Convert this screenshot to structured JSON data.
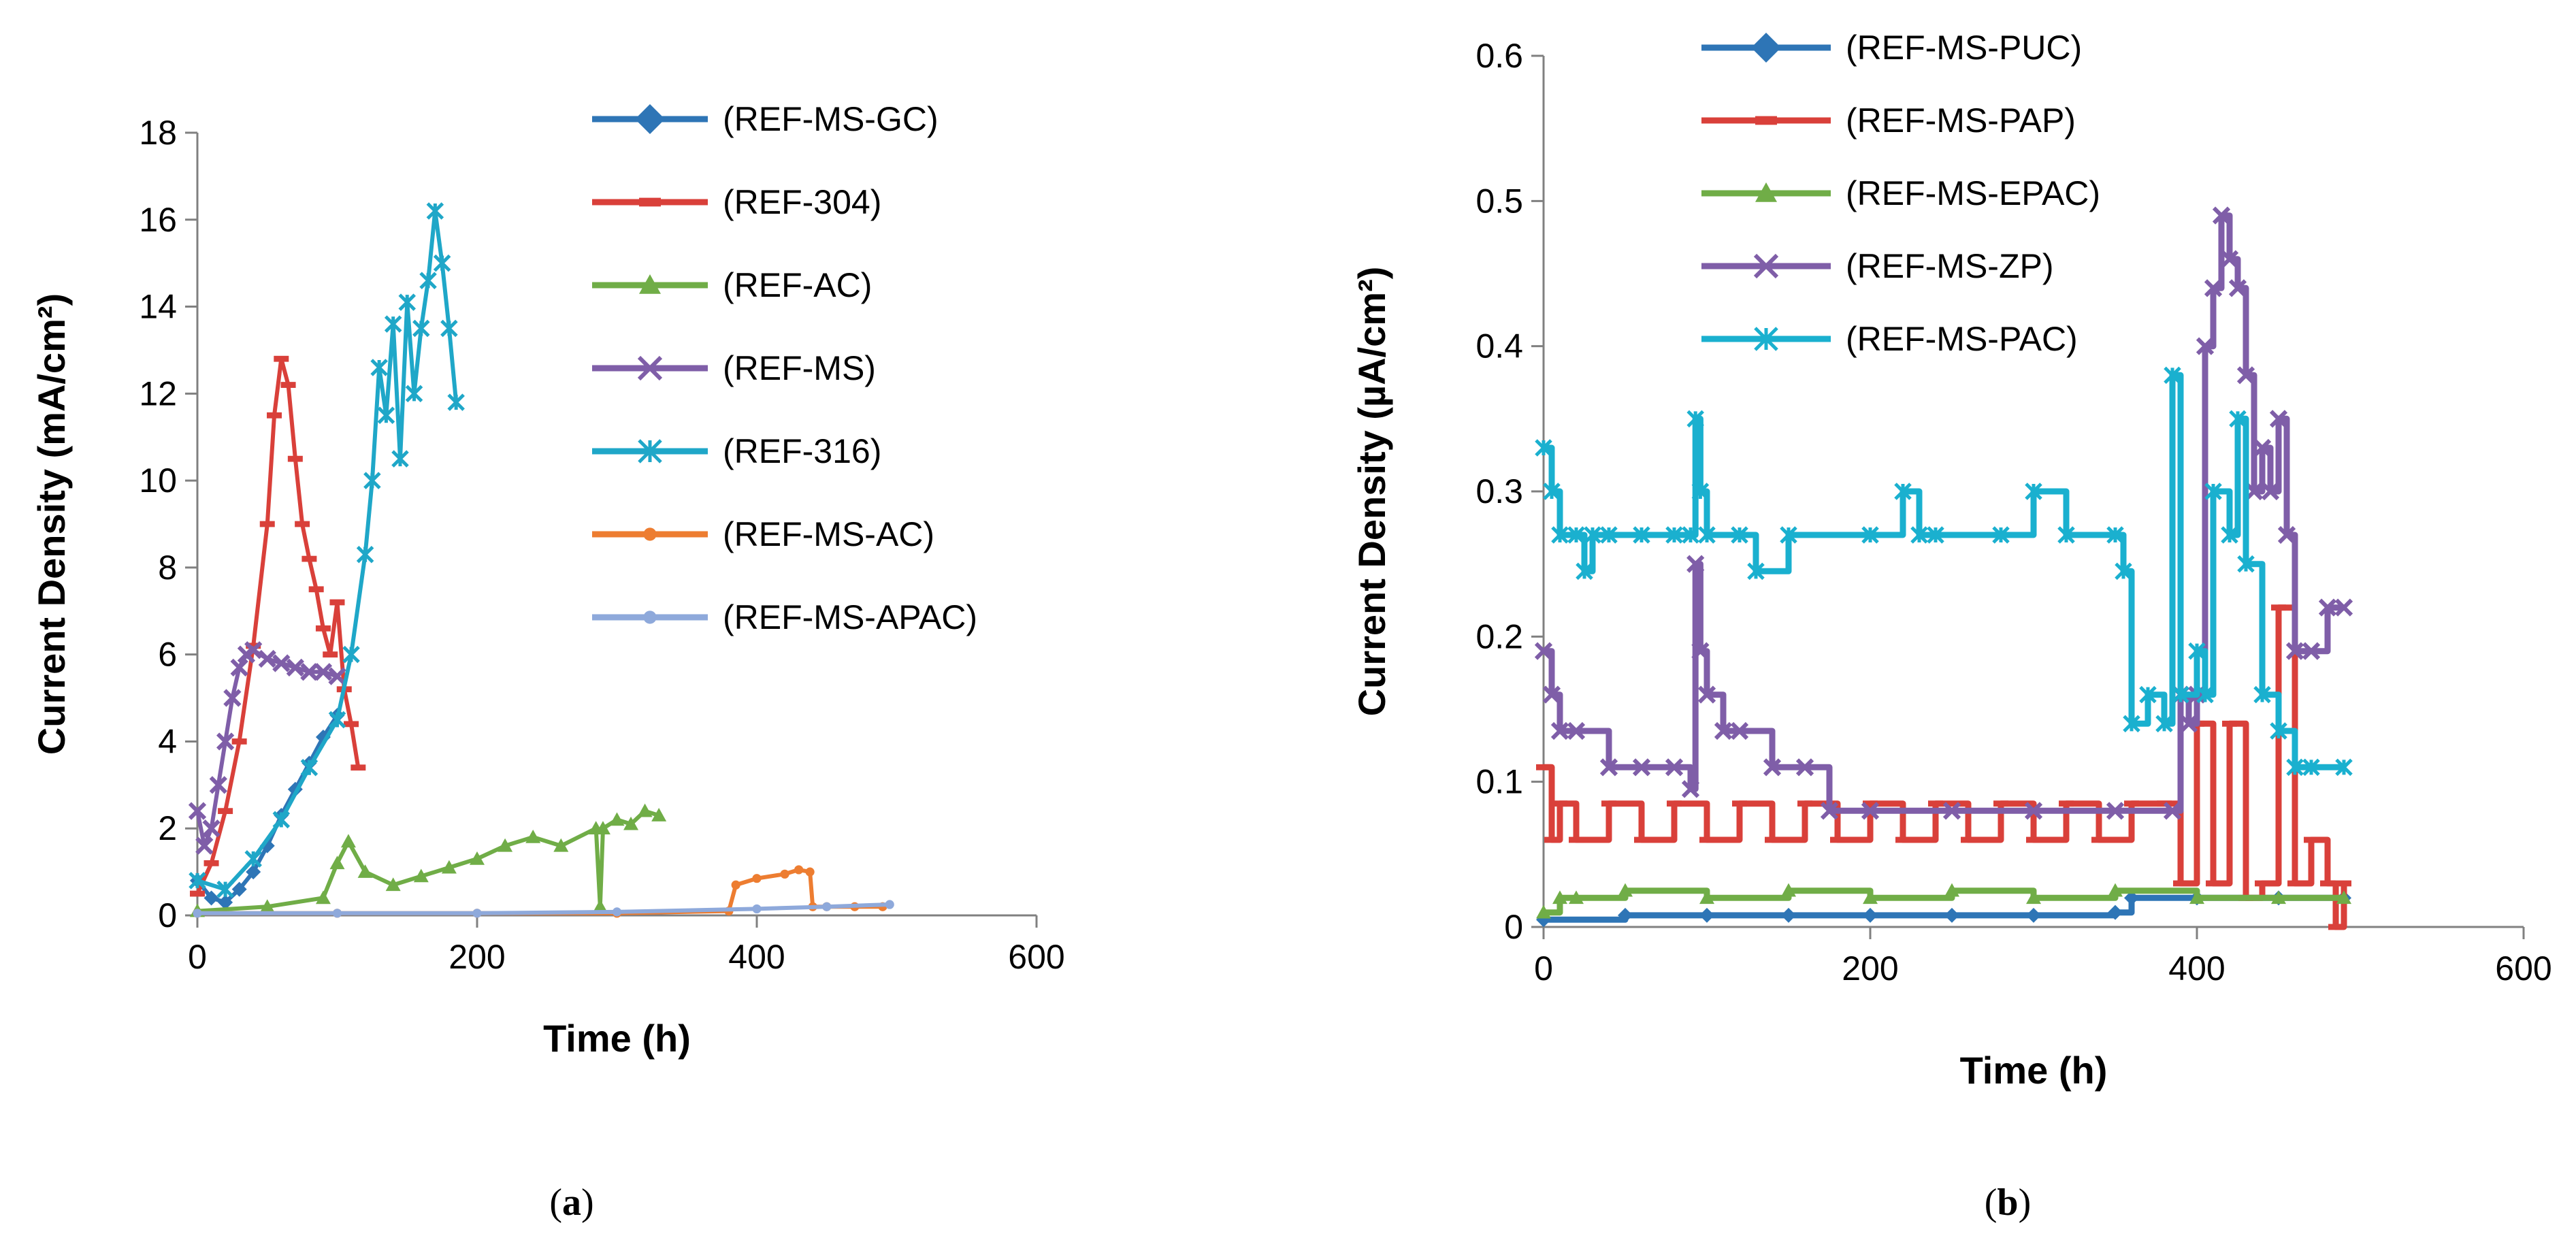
{
  "chart_data": [
    {
      "id": "a",
      "type": "line",
      "caption": "(a)",
      "caption_letter": "a",
      "xlabel": "Time (h)",
      "ylabel": "Current Density (mA/cm²)",
      "xlim": [
        0,
        600
      ],
      "ylim": [
        0,
        18
      ],
      "xticks": [
        0,
        200,
        400,
        600
      ],
      "yticks": [
        0,
        2,
        4,
        6,
        8,
        10,
        12,
        14,
        16,
        18
      ],
      "legend_position": "top-right",
      "series": [
        {
          "name": "(REF-MS-GC)",
          "color": "#2e75b6",
          "marker": "diamond",
          "x": [
            0,
            10,
            20,
            30,
            40,
            50,
            60,
            70,
            80,
            90,
            100
          ],
          "y": [
            0.8,
            0.4,
            0.3,
            0.6,
            1.0,
            1.6,
            2.3,
            2.9,
            3.5,
            4.1,
            4.6
          ]
        },
        {
          "name": "(REF-304)",
          "color": "#d9403a",
          "marker": "dash",
          "x": [
            0,
            10,
            20,
            30,
            40,
            50,
            55,
            60,
            65,
            70,
            75,
            80,
            85,
            90,
            95,
            100,
            105,
            110,
            115
          ],
          "y": [
            0.5,
            1.2,
            2.4,
            4.0,
            6.2,
            9.0,
            11.5,
            12.8,
            12.2,
            10.5,
            9.0,
            8.2,
            7.5,
            6.6,
            6.0,
            7.2,
            5.2,
            4.4,
            3.4
          ]
        },
        {
          "name": "(REF-AC)",
          "color": "#70ad47",
          "marker": "triangle",
          "x": [
            0,
            50,
            90,
            100,
            108,
            120,
            140,
            160,
            180,
            200,
            220,
            240,
            260,
            285,
            288,
            290,
            300,
            310,
            320,
            330
          ],
          "y": [
            0.1,
            0.2,
            0.4,
            1.2,
            1.7,
            1.0,
            0.7,
            0.9,
            1.1,
            1.3,
            1.6,
            1.8,
            1.6,
            2.0,
            0.2,
            2.0,
            2.2,
            2.1,
            2.4,
            2.3
          ]
        },
        {
          "name": "(REF-MS)",
          "color": "#7f5ea8",
          "marker": "x",
          "x": [
            0,
            5,
            10,
            15,
            20,
            25,
            30,
            35,
            40,
            50,
            60,
            70,
            80,
            90,
            100
          ],
          "y": [
            2.4,
            1.6,
            2.0,
            3.0,
            4.0,
            5.0,
            5.7,
            6.0,
            6.1,
            5.9,
            5.8,
            5.7,
            5.6,
            5.6,
            5.5
          ]
        },
        {
          "name": "(REF-316)",
          "color": "#1fa7c8",
          "marker": "star",
          "x": [
            0,
            20,
            40,
            60,
            80,
            100,
            110,
            120,
            125,
            130,
            135,
            140,
            145,
            150,
            155,
            160,
            165,
            170,
            175,
            180,
            185
          ],
          "y": [
            0.8,
            0.6,
            1.3,
            2.2,
            3.4,
            4.5,
            6.0,
            8.3,
            10.0,
            12.6,
            11.5,
            13.6,
            10.5,
            14.1,
            12.0,
            13.5,
            14.6,
            16.2,
            15.0,
            13.5,
            11.8
          ]
        },
        {
          "name": "(REF-MS-AC)",
          "color": "#ed7d31",
          "marker": "dot",
          "x": [
            0,
            100,
            200,
            300,
            380,
            385,
            400,
            420,
            430,
            438,
            440,
            450,
            470,
            490
          ],
          "y": [
            0.05,
            0.05,
            0.05,
            0.05,
            0.1,
            0.7,
            0.85,
            0.95,
            1.05,
            1.0,
            0.2,
            0.2,
            0.2,
            0.2
          ]
        },
        {
          "name": "(REF-MS-APAC)",
          "color": "#8ea9db",
          "marker": "dot",
          "x": [
            0,
            100,
            200,
            300,
            400,
            450,
            495
          ],
          "y": [
            0.05,
            0.05,
            0.05,
            0.08,
            0.15,
            0.2,
            0.25
          ]
        }
      ]
    },
    {
      "id": "b",
      "type": "line",
      "caption": "(b)",
      "caption_letter": "b",
      "xlabel": "Time (h)",
      "ylabel": "Current Density (µA/cm²)",
      "xlim": [
        0,
        600
      ],
      "ylim": [
        0,
        0.6
      ],
      "xticks": [
        0,
        200,
        400,
        600
      ],
      "yticks": [
        0,
        0.1,
        0.2,
        0.3,
        0.4,
        0.5,
        0.6
      ],
      "legend_position": "top-right",
      "series": [
        {
          "name": "(REF-MS-PUC)",
          "color": "#2e75b6",
          "marker": "diamond",
          "x": [
            0,
            50,
            100,
            150,
            200,
            250,
            300,
            350,
            360,
            400,
            450,
            490
          ],
          "y": [
            0.005,
            0.008,
            0.008,
            0.008,
            0.008,
            0.008,
            0.008,
            0.01,
            0.02,
            0.02,
            0.02,
            0.02
          ]
        },
        {
          "name": "(REF-MS-PAP)",
          "color": "#d9403a",
          "marker": "dash",
          "x": [
            0,
            5,
            10,
            20,
            40,
            60,
            80,
            100,
            120,
            140,
            160,
            180,
            200,
            220,
            240,
            260,
            280,
            300,
            320,
            340,
            360,
            380,
            390,
            400,
            410,
            420,
            430,
            440,
            450,
            460,
            470,
            480,
            485,
            490
          ],
          "y": [
            0.11,
            0.06,
            0.085,
            0.06,
            0.085,
            0.06,
            0.085,
            0.06,
            0.085,
            0.06,
            0.085,
            0.06,
            0.085,
            0.06,
            0.085,
            0.06,
            0.085,
            0.06,
            0.085,
            0.06,
            0.085,
            0.085,
            0.03,
            0.14,
            0.03,
            0.14,
            0.02,
            0.03,
            0.22,
            0.03,
            0.06,
            0.03,
            0.0,
            0.03
          ]
        },
        {
          "name": "(REF-MS-EPAC)",
          "color": "#70ad47",
          "marker": "triangle",
          "x": [
            0,
            10,
            20,
            50,
            100,
            150,
            200,
            250,
            300,
            350,
            400,
            450,
            490
          ],
          "y": [
            0.01,
            0.02,
            0.02,
            0.025,
            0.02,
            0.025,
            0.02,
            0.025,
            0.02,
            0.025,
            0.02,
            0.02,
            0.02
          ]
        },
        {
          "name": "(REF-MS-ZP)",
          "color": "#7f5ea8",
          "marker": "x",
          "x": [
            0,
            5,
            10,
            20,
            40,
            60,
            80,
            90,
            93,
            96,
            100,
            110,
            120,
            140,
            160,
            175,
            200,
            250,
            300,
            350,
            385,
            390,
            395,
            400,
            405,
            410,
            415,
            420,
            425,
            430,
            435,
            440,
            445,
            450,
            455,
            460,
            470,
            480,
            490
          ],
          "y": [
            0.19,
            0.16,
            0.135,
            0.135,
            0.11,
            0.11,
            0.11,
            0.095,
            0.25,
            0.19,
            0.16,
            0.135,
            0.135,
            0.11,
            0.11,
            0.08,
            0.08,
            0.08,
            0.08,
            0.08,
            0.08,
            0.16,
            0.14,
            0.16,
            0.4,
            0.44,
            0.49,
            0.46,
            0.44,
            0.38,
            0.3,
            0.33,
            0.3,
            0.35,
            0.27,
            0.19,
            0.19,
            0.22,
            0.22
          ]
        },
        {
          "name": "(REF-MS-PAC)",
          "color": "#1ab0cf",
          "marker": "star",
          "x": [
            0,
            5,
            10,
            20,
            25,
            30,
            40,
            60,
            80,
            90,
            93,
            96,
            100,
            120,
            130,
            150,
            200,
            220,
            230,
            240,
            280,
            300,
            320,
            350,
            355,
            360,
            370,
            380,
            385,
            390,
            400,
            405,
            410,
            420,
            425,
            430,
            440,
            450,
            460,
            470,
            490
          ],
          "y": [
            0.33,
            0.3,
            0.27,
            0.27,
            0.245,
            0.27,
            0.27,
            0.27,
            0.27,
            0.27,
            0.35,
            0.3,
            0.27,
            0.27,
            0.245,
            0.27,
            0.27,
            0.3,
            0.27,
            0.27,
            0.27,
            0.3,
            0.27,
            0.27,
            0.245,
            0.14,
            0.16,
            0.14,
            0.38,
            0.16,
            0.19,
            0.16,
            0.3,
            0.27,
            0.35,
            0.25,
            0.16,
            0.135,
            0.11,
            0.11,
            0.11
          ]
        }
      ]
    }
  ]
}
